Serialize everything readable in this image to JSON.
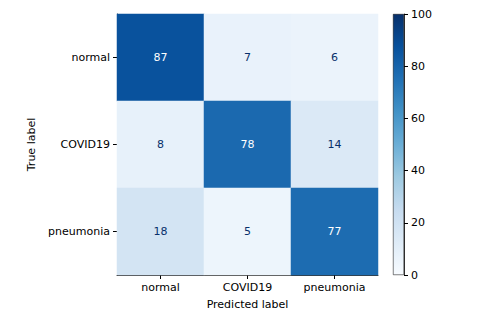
{
  "chart_data": {
    "type": "heatmap",
    "x": [
      "normal",
      "COVID19",
      "pneumonia"
    ],
    "y": [
      "normal",
      "COVID19",
      "pneumonia"
    ],
    "xlabel": "Predicted label",
    "ylabel": "True label",
    "cells": [
      [
        87,
        7,
        6
      ],
      [
        8,
        78,
        14
      ],
      [
        18,
        5,
        77
      ]
    ],
    "colorbar": {
      "range": [
        0,
        100
      ],
      "ticks": [
        0,
        20,
        40,
        60,
        80,
        100
      ]
    },
    "data_labels": true
  }
}
